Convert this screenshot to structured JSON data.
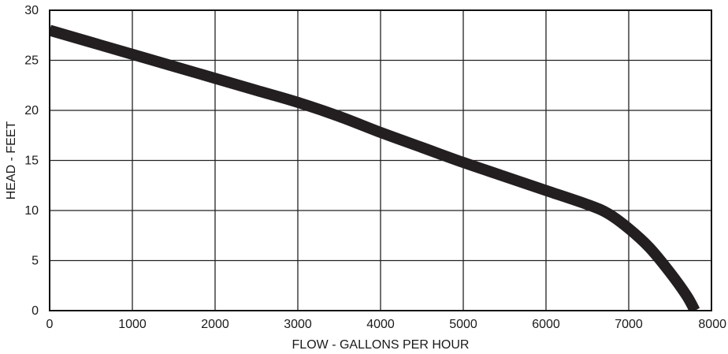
{
  "chart_data": {
    "type": "line",
    "title": "",
    "xlabel": "FLOW - GALLONS PER HOUR",
    "ylabel": "HEAD - FEET",
    "xlim": [
      0,
      8000
    ],
    "ylim": [
      0,
      30
    ],
    "x_ticks": [
      0,
      1000,
      2000,
      3000,
      4000,
      5000,
      6000,
      7000,
      8000
    ],
    "y_ticks": [
      0,
      5,
      10,
      15,
      20,
      25,
      30
    ],
    "grid": true,
    "legend": "none",
    "series": [
      {
        "color": "#231f20",
        "x": [
          0,
          500,
          1000,
          1500,
          2000,
          2500,
          3000,
          3500,
          4000,
          4500,
          5000,
          5500,
          6000,
          6500,
          6750,
          7000,
          7250,
          7500,
          7700,
          7800
        ],
        "y": [
          28.0,
          26.8,
          25.6,
          24.4,
          23.2,
          22.0,
          20.8,
          19.4,
          17.8,
          16.3,
          14.8,
          13.4,
          12.0,
          10.6,
          9.7,
          8.2,
          6.3,
          3.8,
          1.5,
          0
        ]
      }
    ]
  }
}
